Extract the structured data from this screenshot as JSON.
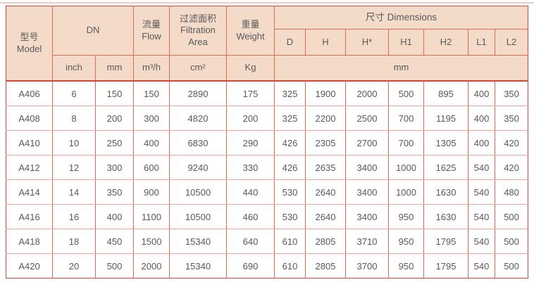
{
  "colors": {
    "header_bg": "#f4dbc9",
    "border_strong": "#cc4a38",
    "border_vertical": "#dd6a52",
    "border_horizontal": "#f0a494",
    "text": "#595959",
    "top_line": "#f5cdc6"
  },
  "table": {
    "header": {
      "model": {
        "zh": "型号",
        "en": "Model"
      },
      "dn": "DN",
      "flow": {
        "zh": "流量",
        "en": "Flow"
      },
      "filtration": {
        "zh": "过滤面积",
        "en": "Filtration Area"
      },
      "weight": {
        "zh": "重量",
        "en": "Weight"
      },
      "dimensions": "尺寸 Dimensions",
      "dims": [
        "D",
        "H",
        "H*",
        "H1",
        "H2",
        "L1",
        "L2"
      ],
      "units": {
        "dn_inch": "inch",
        "dn_mm": "mm",
        "flow": "m³/h",
        "filtration": "cm²",
        "weight": "Kg",
        "dimensions": "mm"
      }
    },
    "rows": [
      {
        "model": "A406",
        "values": [
          "6",
          "150",
          "150",
          "2890",
          "175",
          "325",
          "1900",
          "2000",
          "500",
          "895",
          "400",
          "350"
        ]
      },
      {
        "model": "A408",
        "values": [
          "8",
          "200",
          "300",
          "4820",
          "200",
          "325",
          "2200",
          "2500",
          "700",
          "1195",
          "400",
          "350"
        ]
      },
      {
        "model": "A410",
        "values": [
          "10",
          "250",
          "400",
          "6830",
          "290",
          "426",
          "2305",
          "2700",
          "700",
          "1305",
          "400",
          "420"
        ]
      },
      {
        "model": "A412",
        "values": [
          "12",
          "300",
          "600",
          "9240",
          "330",
          "426",
          "2635",
          "3400",
          "1000",
          "1625",
          "540",
          "420"
        ]
      },
      {
        "model": "A414",
        "values": [
          "14",
          "350",
          "900",
          "10500",
          "440",
          "530",
          "2640",
          "3400",
          "1000",
          "1630",
          "540",
          "480"
        ]
      },
      {
        "model": "A416",
        "values": [
          "16",
          "400",
          "1100",
          "10500",
          "460",
          "530",
          "2640",
          "3400",
          "950",
          "1630",
          "540",
          "500"
        ]
      },
      {
        "model": "A418",
        "values": [
          "18",
          "450",
          "1500",
          "15340",
          "640",
          "610",
          "2805",
          "3710",
          "950",
          "1795",
          "540",
          "500"
        ]
      },
      {
        "model": "A420",
        "values": [
          "20",
          "500",
          "2000",
          "15340",
          "690",
          "610",
          "2805",
          "3700",
          "950",
          "1795",
          "540",
          "500"
        ]
      }
    ]
  }
}
